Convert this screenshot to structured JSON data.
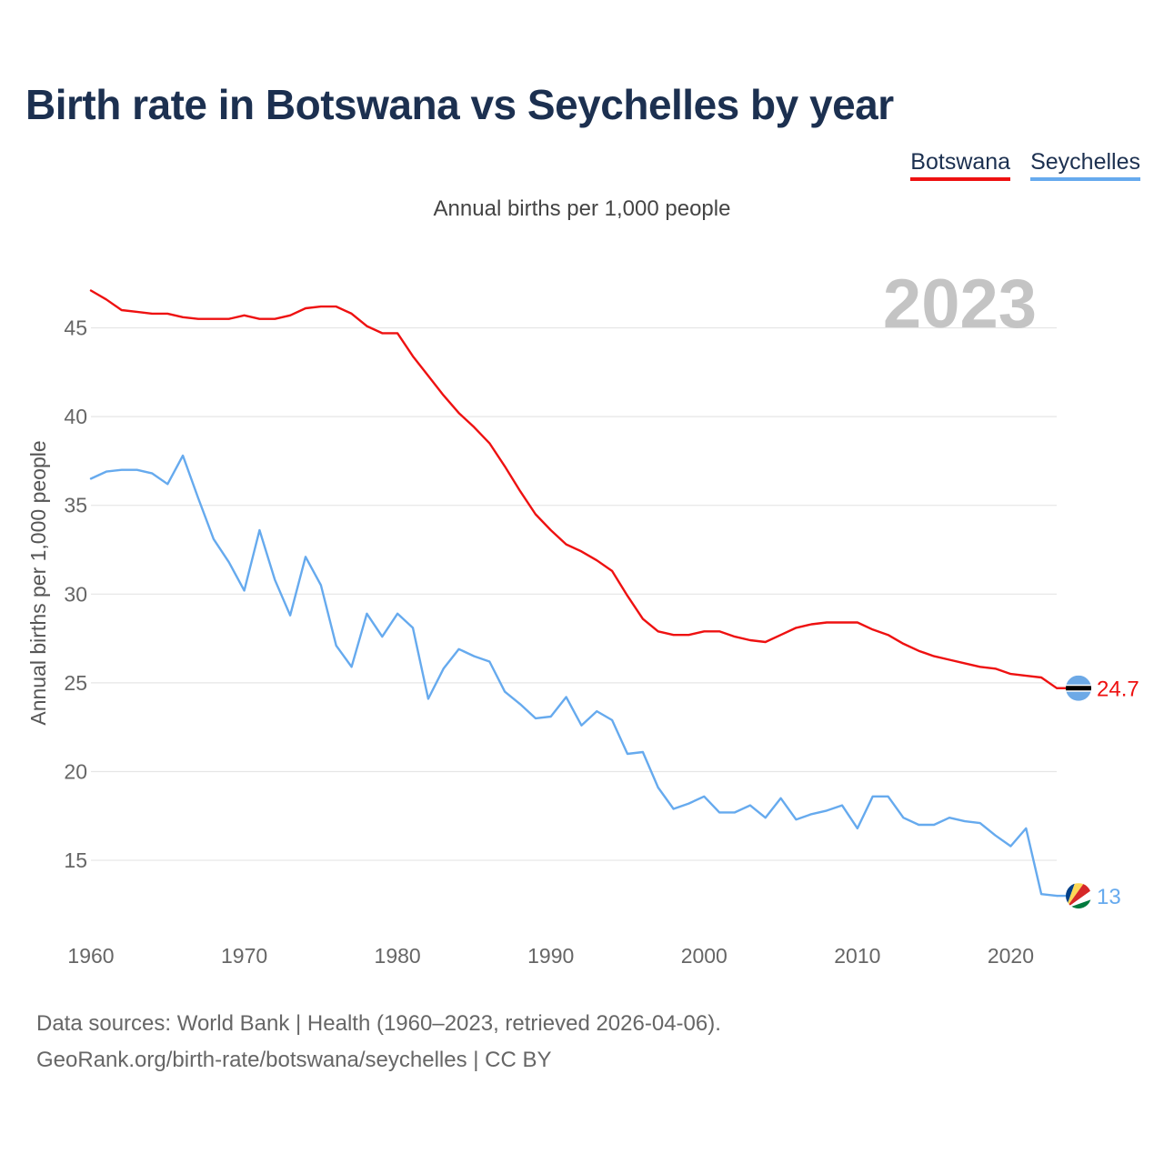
{
  "title": "Birth rate in Botswana vs Seychelles by year",
  "subtitle": "Annual births per 1,000 people",
  "year_label": "2023",
  "colors": {
    "botswana": "#ee1111",
    "seychelles": "#66aaee",
    "grid": "#e6e6e6"
  },
  "legend": [
    {
      "label": "Botswana",
      "color": "#ee1111"
    },
    {
      "label": "Seychelles",
      "color": "#66aaee"
    }
  ],
  "source_line1": "Data sources: World Bank | Health (1960–2023, retrieved 2026-04-06).",
  "source_line2": "GeoRank.org/birth-rate/botswana/seychelles | CC BY",
  "chart_data": {
    "type": "line",
    "title": "Birth rate in Botswana vs Seychelles by year",
    "xlabel": "",
    "ylabel": "Annual births per 1,000 people",
    "xlim": [
      1960,
      2023
    ],
    "ylim": [
      10.7,
      48.1
    ],
    "xticks": [
      1960,
      1970,
      1980,
      1990,
      2000,
      2010,
      2020
    ],
    "yticks": [
      15,
      20,
      25,
      30,
      35,
      40,
      45
    ],
    "grid": true,
    "legend_position": "top-right",
    "x": [
      1960,
      1961,
      1962,
      1963,
      1964,
      1965,
      1966,
      1967,
      1968,
      1969,
      1970,
      1971,
      1972,
      1973,
      1974,
      1975,
      1976,
      1977,
      1978,
      1979,
      1980,
      1981,
      1982,
      1983,
      1984,
      1985,
      1986,
      1987,
      1988,
      1989,
      1990,
      1991,
      1992,
      1993,
      1994,
      1995,
      1996,
      1997,
      1998,
      1999,
      2000,
      2001,
      2002,
      2003,
      2004,
      2005,
      2006,
      2007,
      2008,
      2009,
      2010,
      2011,
      2012,
      2013,
      2014,
      2015,
      2016,
      2017,
      2018,
      2019,
      2020,
      2021,
      2022,
      2023
    ],
    "series": [
      {
        "name": "Botswana",
        "end_label": "24.7",
        "values": [
          47.1,
          46.6,
          46.0,
          45.9,
          45.8,
          45.8,
          45.6,
          45.5,
          45.5,
          45.5,
          45.7,
          45.5,
          45.5,
          45.7,
          46.1,
          46.2,
          46.2,
          45.8,
          45.1,
          44.7,
          44.7,
          43.4,
          42.3,
          41.2,
          40.2,
          39.4,
          38.5,
          37.2,
          35.8,
          34.5,
          33.6,
          32.8,
          32.4,
          31.9,
          31.3,
          29.9,
          28.6,
          27.9,
          27.7,
          27.7,
          27.9,
          27.9,
          27.6,
          27.4,
          27.3,
          27.7,
          28.1,
          28.3,
          28.4,
          28.4,
          28.4,
          28.0,
          27.7,
          27.2,
          26.8,
          26.5,
          26.3,
          26.1,
          25.9,
          25.8,
          25.5,
          25.4,
          25.3,
          24.7
        ]
      },
      {
        "name": "Seychelles",
        "end_label": "13",
        "values": [
          36.5,
          36.9,
          37.0,
          37.0,
          36.8,
          36.2,
          37.8,
          35.4,
          33.1,
          31.8,
          30.2,
          33.6,
          30.8,
          28.8,
          32.1,
          30.5,
          27.1,
          25.9,
          28.9,
          27.6,
          28.9,
          28.1,
          24.1,
          25.8,
          26.9,
          26.5,
          26.2,
          24.5,
          23.8,
          23.0,
          23.1,
          24.2,
          22.6,
          23.4,
          22.9,
          21.0,
          21.1,
          19.1,
          17.9,
          18.2,
          18.6,
          17.7,
          17.7,
          18.1,
          17.4,
          18.5,
          17.3,
          17.6,
          17.8,
          18.1,
          16.8,
          18.6,
          18.6,
          17.4,
          17.0,
          17.0,
          17.4,
          17.2,
          17.1,
          16.4,
          15.8,
          16.8,
          13.1,
          13.0
        ]
      }
    ]
  }
}
